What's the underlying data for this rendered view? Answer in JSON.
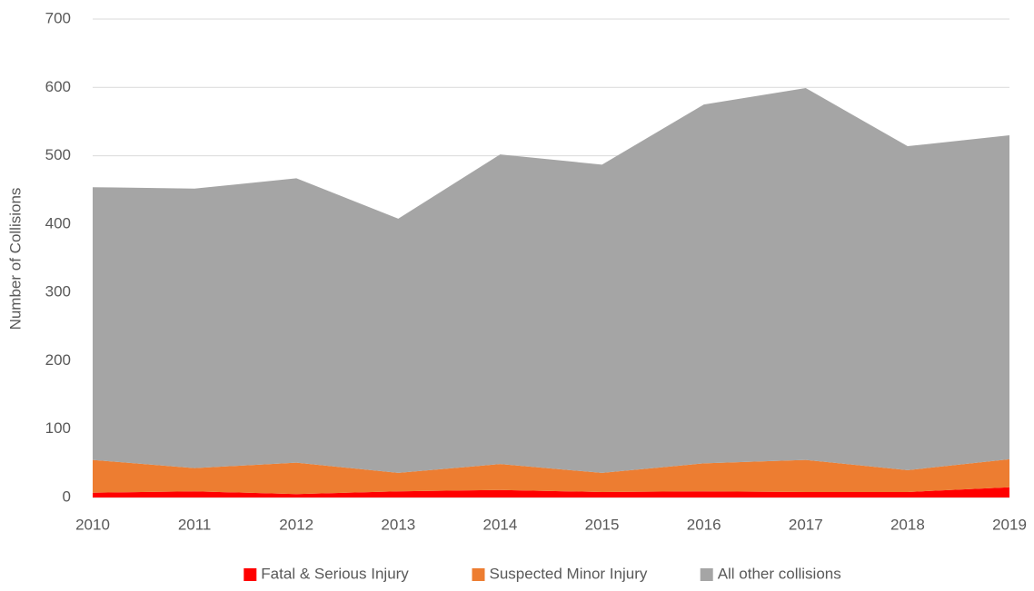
{
  "chart_data": {
    "type": "stacked_area",
    "y_label": "Number of Collisions",
    "categories": [
      "2010",
      "2011",
      "2012",
      "2013",
      "2014",
      "2015",
      "2016",
      "2017",
      "2018",
      "2019"
    ],
    "series": [
      {
        "name": "Fatal & Serious Injury",
        "color": "#ff0000",
        "values": [
          7,
          9,
          5,
          9,
          11,
          8,
          9,
          8,
          8,
          15
        ]
      },
      {
        "name": "Suspected Minor Injury",
        "color": "#ed7d31",
        "values": [
          48,
          34,
          46,
          27,
          38,
          28,
          41,
          47,
          32,
          41
        ]
      },
      {
        "name": "All other collisions",
        "color": "#a5a5a5",
        "values": [
          399,
          409,
          416,
          372,
          453,
          451,
          525,
          544,
          474,
          474
        ]
      }
    ],
    "ylim": [
      0,
      700
    ],
    "yticks": [
      0,
      100,
      200,
      300,
      400,
      500,
      600,
      700
    ],
    "grid": true,
    "legend": "bottom"
  }
}
